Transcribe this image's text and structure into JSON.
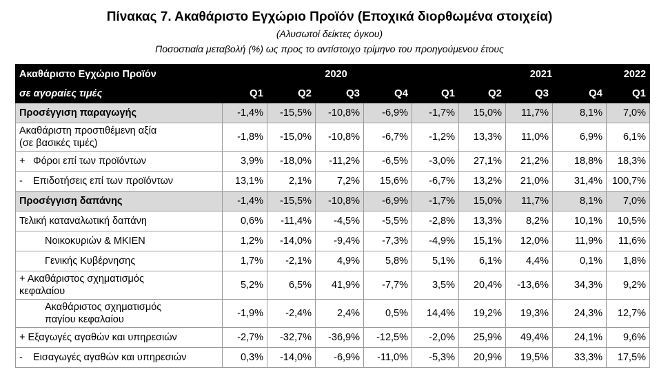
{
  "title": "Πίνακας 7. Ακαθάριστο Εγχώριο Προϊόν (Εποχικά διορθωμένα στοιχεία)",
  "subtitle1": "(Αλυσωτοί δείκτες όγκου)",
  "subtitle2": "Ποσοστιαία μεταβολή (%) ως προς το αντίστοιχο τρίμηνο  του προηγούμενου έτους",
  "header": {
    "label1": "Ακαθάριστο Εγχώριο Προϊόν",
    "label2": "σε αγοραίες τιμές",
    "years": [
      "2020",
      "2021",
      "2022"
    ],
    "quarters": [
      "Q1",
      "Q2",
      "Q3",
      "Q4",
      "Q1",
      "Q2",
      "Q3",
      "Q4",
      "Q1"
    ]
  },
  "rows": [
    {
      "label": "Προσέγγιση παραγωγής",
      "values": [
        "-1,4%",
        "-15,5%",
        "-10,8%",
        "-6,9%",
        "-1,7%",
        "15,0%",
        "11,7%",
        "8,1%",
        "7,0%"
      ]
    },
    {
      "label": "Ακαθάριστη προστιθέμενη αξία",
      "label2": "(σε βασικές τιμές)",
      "values": [
        "-1,8%",
        "-15,0%",
        "-10,8%",
        "-6,7%",
        "-1,2%",
        "13,3%",
        "11,0%",
        "6,9%",
        "6,1%"
      ]
    },
    {
      "prefix": "+",
      "label": "Φόροι επί των προϊόντων",
      "values": [
        "3,9%",
        "-18,0%",
        "-11,2%",
        "-6,5%",
        "-3,0%",
        "27,1%",
        "21,2%",
        "18,8%",
        "18,3%"
      ]
    },
    {
      "prefix": "-",
      "label": "Επιδοτήσεις επί των προϊόντων",
      "values": [
        "13,1%",
        "2,1%",
        "7,2%",
        "15,6%",
        "-6,7%",
        "13,2%",
        "21,0%",
        "31,4%",
        "100,7%"
      ]
    },
    {
      "label": "Προσέγγιση δαπάνης",
      "values": [
        "-1,4%",
        "-15,5%",
        "-10,8%",
        "-6,9%",
        "-1,7%",
        "15,0%",
        "11,7%",
        "8,1%",
        "7,0%"
      ]
    },
    {
      "label": "Τελική καταναλωτική δαπάνη",
      "values": [
        "0,6%",
        "-11,4%",
        "-4,5%",
        "-5,5%",
        "-2,8%",
        "13,3%",
        "8,2%",
        "10,1%",
        "10,5%"
      ]
    },
    {
      "label": "Νοικοκυριών & ΜΚΙΕΝ",
      "values": [
        "1,2%",
        "-14,0%",
        "-9,4%",
        "-7,3%",
        "-4,9%",
        "15,1%",
        "12,0%",
        "11,9%",
        "11,6%"
      ]
    },
    {
      "label": "Γενικής Κυβέρνησης",
      "values": [
        "1,7%",
        "-2,1%",
        "4,9%",
        "5,8%",
        "5,1%",
        "6,1%",
        "4,4%",
        "0,1%",
        "1,8%"
      ]
    },
    {
      "label": "+ Ακαθάριστος σχηματισμός",
      "label2": "κεφαλαίου",
      "values": [
        "5,2%",
        "6,5%",
        "41,9%",
        "-7,7%",
        "3,5%",
        "20,4%",
        "-13,6%",
        "34,3%",
        "9,2%"
      ]
    },
    {
      "label": "Ακαθάριστος σχηματισμός",
      "label2": "παγίου κεφαλαίου",
      "values": [
        "-1,9%",
        "-2,4%",
        "2,4%",
        "0,5%",
        "14,4%",
        "19,2%",
        "19,3%",
        "24,3%",
        "12,7%"
      ]
    },
    {
      "label": "+ Εξαγωγές αγαθών και υπηρεσιών",
      "values": [
        "-2,7%",
        "-32,7%",
        "-36,9%",
        "-12,5%",
        "-2,0%",
        "25,9%",
        "49,4%",
        "24,1%",
        "9,6%"
      ]
    },
    {
      "prefix": "-",
      "label": "Εισαγωγές αγαθών και υπηρεσιών",
      "values": [
        "0,3%",
        "-14,0%",
        "-6,9%",
        "-11,0%",
        "-5,3%",
        "20,9%",
        "19,5%",
        "33,3%",
        "17,5%"
      ]
    }
  ]
}
